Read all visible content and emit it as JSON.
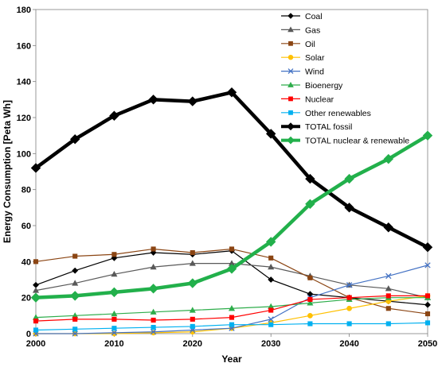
{
  "chart_data": {
    "type": "line",
    "xlabel": "Year",
    "ylabel": "Energy Consumption  [Peta Wh]",
    "xlim": [
      2000,
      2050
    ],
    "ylim": [
      0,
      180
    ],
    "xticks": [
      2000,
      2010,
      2020,
      2030,
      2040,
      2050
    ],
    "yticks": [
      0,
      20,
      40,
      60,
      80,
      100,
      120,
      140,
      160,
      180
    ],
    "x": [
      2000,
      2005,
      2010,
      2015,
      2020,
      2025,
      2030,
      2035,
      2040,
      2045,
      2050
    ],
    "grid": false,
    "legend_position": "top-right",
    "series": [
      {
        "name": "Coal",
        "color": "#000000",
        "marker": "diamond",
        "values": [
          27,
          35,
          42,
          45,
          44,
          46,
          30,
          22,
          20,
          18,
          16
        ]
      },
      {
        "name": "Gas",
        "color": "#595959",
        "marker": "triangle",
        "values": [
          24,
          28,
          33,
          37,
          39,
          39,
          37,
          32,
          27,
          25,
          20
        ]
      },
      {
        "name": "Oil",
        "color": "#8B4513",
        "marker": "square",
        "values": [
          40,
          43,
          44,
          47,
          45,
          47,
          42,
          31,
          20,
          14,
          11
        ]
      },
      {
        "name": "Solar",
        "color": "#FFC000",
        "marker": "circle",
        "values": [
          0,
          0,
          0,
          0.5,
          1,
          3,
          6,
          10,
          14,
          18,
          21
        ]
      },
      {
        "name": "Wind",
        "color": "#4472C4",
        "marker": "x",
        "values": [
          0,
          0,
          0.5,
          1,
          2,
          3,
          8,
          20,
          27,
          32,
          38
        ]
      },
      {
        "name": "Bioenergy",
        "color": "#2EAD4B",
        "marker": "triangle",
        "values": [
          9,
          10,
          11,
          12,
          13,
          14,
          15,
          17,
          19,
          20,
          20
        ]
      },
      {
        "name": "Nuclear",
        "color": "#FF0000",
        "marker": "square",
        "values": [
          7,
          8,
          8,
          7.5,
          8,
          9,
          13,
          19,
          20,
          21,
          21
        ]
      },
      {
        "name": "Other renewables",
        "color": "#00B0F0",
        "marker": "square",
        "values": [
          2,
          2.5,
          3,
          3.5,
          4,
          5,
          5,
          5.5,
          5.5,
          5.5,
          6
        ]
      },
      {
        "name": "TOTAL fossil",
        "color": "#000000",
        "marker": "diamond",
        "thick": true,
        "values": [
          92,
          108,
          121,
          130,
          129,
          134,
          111,
          86,
          70,
          59,
          48
        ]
      },
      {
        "name": "TOTAL nuclear & renewable",
        "color": "#22B04B",
        "marker": "diamond",
        "thick": true,
        "values": [
          20,
          21,
          23,
          25,
          28,
          36,
          51,
          72,
          86,
          97,
          110
        ]
      }
    ]
  }
}
